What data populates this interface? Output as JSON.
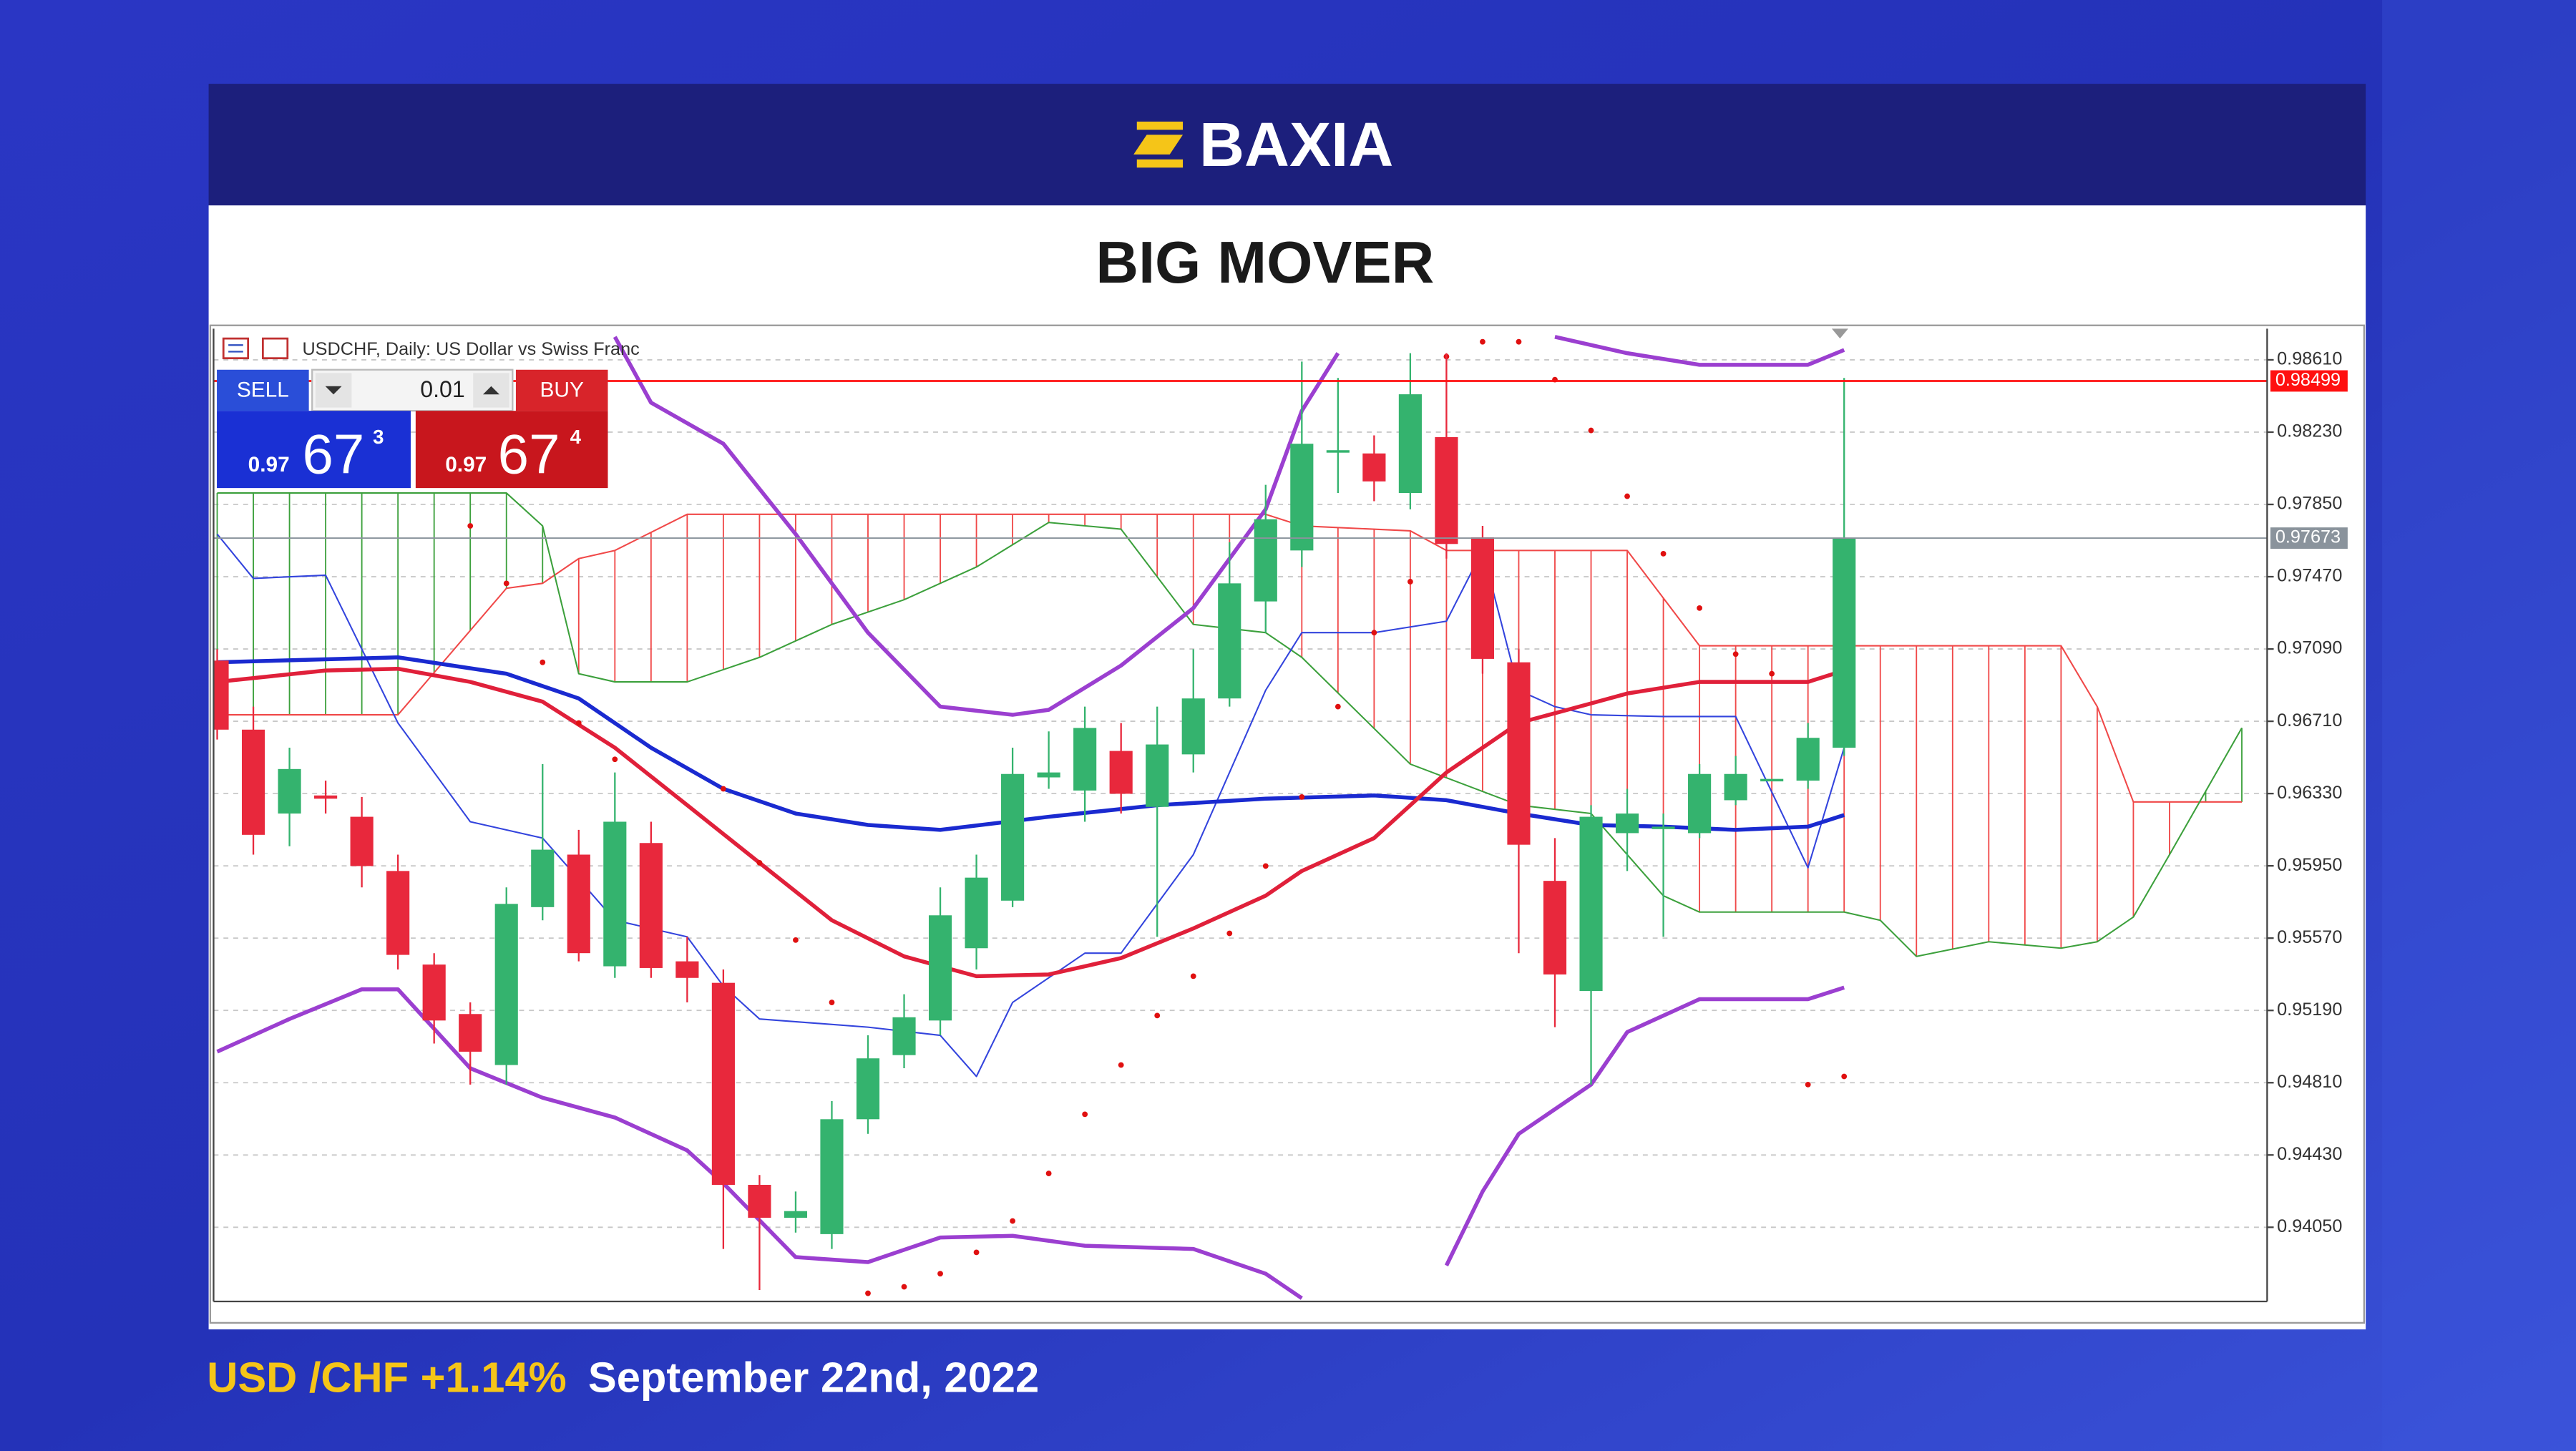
{
  "brand": "BAXIA",
  "heading": "BIG MOVER",
  "footer": {
    "pair_change": "USD /CHF +1.14%",
    "date": "September 22nd, 2022"
  },
  "chart_data": {
    "type": "candlestick",
    "title": "USDCHF, Daily:  US Dollar vs Swiss Franc",
    "trade_panel": {
      "sell_label": "SELL",
      "buy_label": "BUY",
      "lot": 0.01,
      "sell": {
        "prefix": 0.97,
        "main": 67,
        "pip": 3
      },
      "buy": {
        "prefix": 0.97,
        "main": 67,
        "pip": 4
      }
    },
    "xlim": [
      -0.1,
      56.7
    ],
    "ylim": [
      0.9366,
      0.98774
    ],
    "yticks": [
      {
        "value": 0.9861,
        "label": "0.98610"
      },
      {
        "value": 0.9823,
        "label": "0.98230"
      },
      {
        "value": 0.9785,
        "label": "0.97850"
      },
      {
        "value": 0.9747,
        "label": "0.97470"
      },
      {
        "value": 0.9709,
        "label": "0.97090"
      },
      {
        "value": 0.9671,
        "label": "0.96710"
      },
      {
        "value": 0.9633,
        "label": "0.96330"
      },
      {
        "value": 0.9595,
        "label": "0.95950"
      },
      {
        "value": 0.9557,
        "label": "0.95570"
      },
      {
        "value": 0.9519,
        "label": "0.95190"
      },
      {
        "value": 0.9481,
        "label": "0.94810"
      },
      {
        "value": 0.9443,
        "label": "0.94430"
      },
      {
        "value": 0.9405,
        "label": "0.94050"
      }
    ],
    "grid": true,
    "candles": {
      "up_color": "#34b36e",
      "down_color": "#e8283c",
      "x": [
        0,
        1,
        2,
        3,
        4,
        5,
        6,
        7,
        8,
        9,
        10,
        11,
        12,
        13,
        14,
        15,
        16,
        17,
        18,
        19,
        20,
        21,
        22,
        23,
        24,
        25,
        26,
        27,
        28,
        29,
        30,
        31,
        32,
        33,
        34,
        35,
        36,
        37,
        38,
        39,
        40,
        41,
        42,
        43,
        44,
        45
      ],
      "open": [
        0.97029,
        0.96666,
        0.96225,
        0.9632,
        0.96208,
        0.95923,
        0.95431,
        0.95171,
        0.94903,
        0.95733,
        0.96009,
        0.95422,
        0.9607,
        0.95448,
        0.95335,
        0.94273,
        0.941,
        0.94014,
        0.94618,
        0.94955,
        0.95137,
        0.95517,
        0.95767,
        0.96415,
        0.96346,
        0.96554,
        0.9626,
        0.96536,
        0.9683,
        0.9734,
        0.97608,
        0.98126,
        0.98118,
        0.9791,
        0.98204,
        0.97677,
        0.9702,
        0.95871,
        0.95292,
        0.96122,
        0.96148,
        0.96122,
        0.96295,
        0.96398,
        0.96398,
        0.96571
      ],
      "high": [
        0.97089,
        0.96787,
        0.96571,
        0.96398,
        0.96312,
        0.96009,
        0.95491,
        0.95232,
        0.95837,
        0.96485,
        0.96139,
        0.96441,
        0.96182,
        0.95577,
        0.95405,
        0.94325,
        0.94238,
        0.94713,
        0.95059,
        0.95275,
        0.95837,
        0.96009,
        0.96571,
        0.96657,
        0.96787,
        0.96701,
        0.96787,
        0.97089,
        0.97651,
        0.97953,
        0.98601,
        0.98515,
        0.98213,
        0.98645,
        0.98645,
        0.97737,
        0.97089,
        0.96096,
        0.96269,
        0.96355,
        0.96225,
        0.96485,
        0.96528,
        0.96407,
        0.96701,
        0.98515
      ],
      "low": [
        0.96614,
        0.96009,
        0.96053,
        0.96225,
        0.95837,
        0.95405,
        0.95016,
        0.948,
        0.948,
        0.95664,
        0.95448,
        0.95361,
        0.95361,
        0.95232,
        0.93936,
        0.9372,
        0.94022,
        0.93936,
        0.94541,
        0.94886,
        0.95059,
        0.95405,
        0.95733,
        0.96355,
        0.96182,
        0.96225,
        0.95577,
        0.96441,
        0.96787,
        0.97176,
        0.97521,
        0.9791,
        0.97867,
        0.97824,
        0.97565,
        0.9696,
        0.95491,
        0.95102,
        0.948,
        0.95923,
        0.95577,
        0.96096,
        0.96269,
        0.96398,
        0.96355,
        0.96528
      ],
      "close": [
        0.96666,
        0.96113,
        0.96459,
        0.96303,
        0.95949,
        0.95482,
        0.95137,
        0.94973,
        0.9575,
        0.96035,
        0.95491,
        0.96182,
        0.95413,
        0.95361,
        0.94273,
        0.941,
        0.94135,
        0.94618,
        0.94938,
        0.95154,
        0.9569,
        0.95888,
        0.96433,
        0.96441,
        0.96675,
        0.96329,
        0.96588,
        0.9683,
        0.97435,
        0.97772,
        0.98169,
        0.98135,
        0.97971,
        0.98429,
        0.97642,
        0.97038,
        0.96061,
        0.95379,
        0.96208,
        0.96225,
        0.96156,
        0.96433,
        0.96433,
        0.96407,
        0.96623,
        0.97673
      ]
    },
    "cloud": {
      "span_a": {
        "color": "#f04848",
        "x": [
          0,
          5,
          8,
          9,
          10,
          11,
          13,
          29,
          30,
          33,
          34,
          39,
          41,
          51,
          52,
          53,
          56
        ],
        "values": [
          0.96744,
          0.96744,
          0.97409,
          0.97435,
          0.97565,
          0.97608,
          0.97798,
          0.97798,
          0.97737,
          0.97711,
          0.97608,
          0.97608,
          0.97107,
          0.97107,
          0.96787,
          0.96286,
          0.96286
        ]
      },
      "span_b": {
        "color": "#3ca03c",
        "x": [
          0,
          8,
          9,
          10,
          11,
          13,
          15,
          17,
          19,
          21,
          23,
          25,
          27,
          29,
          30,
          33,
          36,
          38,
          40,
          41,
          45,
          46,
          47,
          49,
          51,
          52,
          53,
          54,
          56
        ],
        "values": [
          0.9791,
          0.9791,
          0.97737,
          0.9696,
          0.96917,
          0.96917,
          0.97046,
          0.97219,
          0.97349,
          0.97521,
          0.97755,
          0.9772,
          0.97219,
          0.97176,
          0.97046,
          0.96485,
          0.96269,
          0.96225,
          0.95793,
          0.95707,
          0.95707,
          0.95664,
          0.95474,
          0.95551,
          0.95517,
          0.95551,
          0.95681,
          0.96009,
          0.96675
        ]
      }
    },
    "overlays": [
      {
        "style": "thin",
        "color": "#3344dd",
        "x": [
          0,
          1,
          3,
          5,
          7,
          9,
          11,
          13,
          14,
          15,
          18,
          20,
          21,
          22,
          24,
          25,
          27,
          29,
          30,
          32,
          34,
          35,
          36,
          37,
          38,
          40,
          42,
          44,
          45
        ],
        "values": [
          0.97694,
          0.97461,
          0.97478,
          0.96701,
          0.96182,
          0.96096,
          0.95664,
          0.95577,
          0.95318,
          0.95145,
          0.95102,
          0.95059,
          0.94843,
          0.95232,
          0.95491,
          0.95491,
          0.96009,
          0.96873,
          0.97176,
          0.97176,
          0.97236,
          0.97608,
          0.96873,
          0.96787,
          0.96744,
          0.96735,
          0.96735,
          0.9594,
          0.96571
        ]
      },
      {
        "style": "thick",
        "color": "#9b3fd0",
        "x": [
          11,
          12,
          14,
          16,
          18,
          20,
          22,
          23,
          25,
          27,
          29,
          30,
          31,
          32,
          37,
          39,
          41,
          44,
          45
        ],
        "values": [
          0.98731,
          0.98385,
          0.98169,
          0.97694,
          0.97176,
          0.96787,
          0.96744,
          0.9677,
          0.97003,
          0.97305,
          0.97824,
          0.98342,
          0.98645,
          null,
          0.98731,
          0.98645,
          0.98584,
          0.98584,
          0.98662
        ]
      },
      {
        "style": "thick",
        "color": "#9b3fd0",
        "x": [
          0,
          2,
          4,
          5,
          7,
          9,
          11,
          13,
          14,
          16,
          18,
          20,
          22,
          24,
          27,
          29,
          30,
          32,
          34,
          35,
          36,
          38,
          39,
          41,
          44,
          45
        ],
        "values": [
          0.94973,
          0.95145,
          0.95301,
          0.95301,
          0.94886,
          0.94731,
          0.94627,
          0.94454,
          0.94281,
          0.93893,
          0.93867,
          0.93996,
          0.94005,
          0.93953,
          0.93936,
          0.93806,
          0.93677,
          null,
          0.93849,
          0.94238,
          0.94541,
          0.948,
          0.95076,
          0.95249,
          0.95249,
          0.9531
        ]
      },
      {
        "style": "thick",
        "color": "#1a2ad0",
        "x": [
          0,
          5,
          8,
          10,
          12,
          14,
          16,
          18,
          20,
          23,
          26,
          29,
          32,
          34,
          36,
          38,
          40,
          42,
          44,
          45
        ],
        "values": [
          0.9702,
          0.97046,
          0.9696,
          0.9683,
          0.96571,
          0.96355,
          0.96225,
          0.96165,
          0.96139,
          0.96208,
          0.96269,
          0.96303,
          0.9632,
          0.96295,
          0.96225,
          0.96165,
          0.96156,
          0.96139,
          0.96156,
          0.96217
        ]
      },
      {
        "style": "thick",
        "color": "#e0203a",
        "x": [
          0,
          3,
          5,
          7,
          9,
          11,
          13,
          15,
          17,
          19,
          21,
          23,
          25,
          27,
          29,
          30,
          32,
          34,
          36,
          38,
          39,
          41,
          43,
          44,
          45
        ],
        "values": [
          0.96917,
          0.96977,
          0.96986,
          0.96917,
          0.96813,
          0.96571,
          0.96269,
          0.95966,
          0.95664,
          0.95474,
          0.9537,
          0.95379,
          0.95465,
          0.95621,
          0.95793,
          0.95923,
          0.96096,
          0.96441,
          0.96701,
          0.96804,
          0.96856,
          0.96917,
          0.96917,
          0.96917,
          0.96977
        ]
      },
      {
        "style": "dots",
        "color": "#e01010",
        "x": [
          7,
          8,
          9,
          10,
          11,
          14,
          15,
          16,
          17,
          18,
          19,
          20,
          21,
          22,
          23,
          24,
          25,
          26,
          27,
          28,
          29,
          30,
          31,
          32,
          33,
          34,
          35,
          36,
          37,
          38,
          39,
          40,
          41,
          42,
          43,
          44,
          45
        ],
        "values": [
          0.97737,
          0.97435,
          0.9702,
          0.96701,
          0.9651,
          0.96355,
          0.95966,
          0.9556,
          0.95232,
          0.93703,
          0.93737,
          0.93806,
          0.93918,
          0.94083,
          0.94333,
          0.94644,
          0.94903,
          0.95163,
          0.9537,
          0.95595,
          0.95949,
          0.96312,
          0.96787,
          0.97176,
          0.97444,
          0.98627,
          0.98705,
          0.98705,
          0.98506,
          0.98239,
          0.97893,
          0.97591,
          0.97305,
          0.97063,
          0.9696,
          0.948,
          0.94843
        ]
      }
    ],
    "price_lines": [
      {
        "value": 0.98499,
        "color": "#ff1010"
      },
      {
        "value": 0.97673,
        "color": "#8a939c"
      }
    ]
  }
}
